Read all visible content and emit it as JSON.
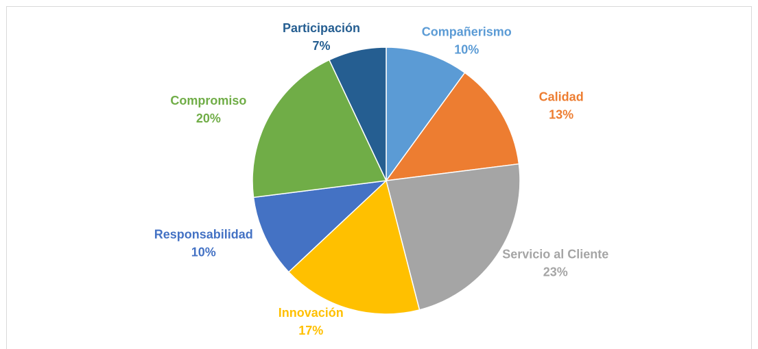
{
  "chart_data": {
    "type": "pie",
    "categories": [
      "Compañerismo",
      "Calidad",
      "Servicio al Cliente",
      "Innovación",
      "Responsabilidad",
      "Compromiso",
      "Participación"
    ],
    "values": [
      10,
      13,
      23,
      17,
      10,
      20,
      7
    ],
    "value_labels": [
      "10%",
      "13%",
      "23%",
      "17%",
      "10%",
      "20%",
      "7%"
    ],
    "colors": [
      "#5b9bd5",
      "#ed7d31",
      "#a5a5a5",
      "#ffc000",
      "#4472c4",
      "#70ad47",
      "#255e91"
    ]
  }
}
